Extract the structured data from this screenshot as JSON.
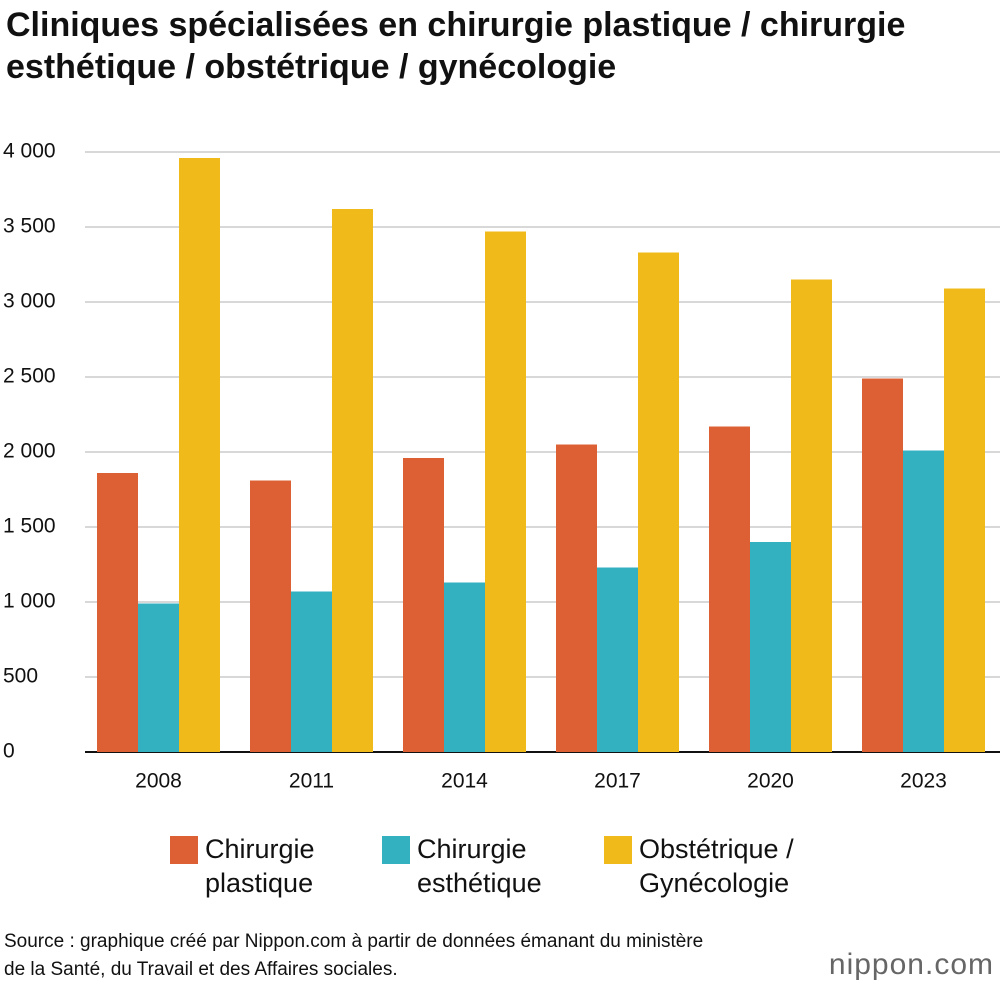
{
  "chart_data": {
    "type": "bar",
    "title": "Cliniques spécialisées en chirurgie plastique / chirurgie esthétique / obstétrique / gynécologie",
    "categories": [
      "2008",
      "2011",
      "2014",
      "2017",
      "2020",
      "2023"
    ],
    "series": [
      {
        "name": "Chirurgie plastique",
        "color": "#dc6033",
        "values": [
          1860,
          1810,
          1960,
          2050,
          2170,
          2490
        ]
      },
      {
        "name": "Chirurgie esthétique",
        "color": "#33b1c0",
        "values": [
          990,
          1070,
          1130,
          1230,
          1400,
          2010
        ]
      },
      {
        "name": "Obstétrique / Gynécologie",
        "color": "#f0bb1a",
        "values": [
          3960,
          3620,
          3470,
          3330,
          3150,
          3090
        ]
      }
    ],
    "ylim": [
      0,
      4000
    ],
    "yticks": [
      0,
      500,
      {
        "value": 1000,
        "label": "1 000"
      },
      {
        "value": 1500,
        "label": "1 500"
      },
      {
        "value": 2000,
        "label": "2 000"
      },
      {
        "value": 2500,
        "label": "2 500"
      },
      {
        "value": 3000,
        "label": "3 000"
      },
      {
        "value": 3500,
        "label": "3 500"
      },
      {
        "value": 4000,
        "label": "4 000"
      }
    ],
    "grid": true,
    "source": "Source : graphique créé par Nippon.com à partir de données émanant du ministère de la Santé, du Travail et des Affaires sociales.",
    "logo": "nippon.com"
  }
}
